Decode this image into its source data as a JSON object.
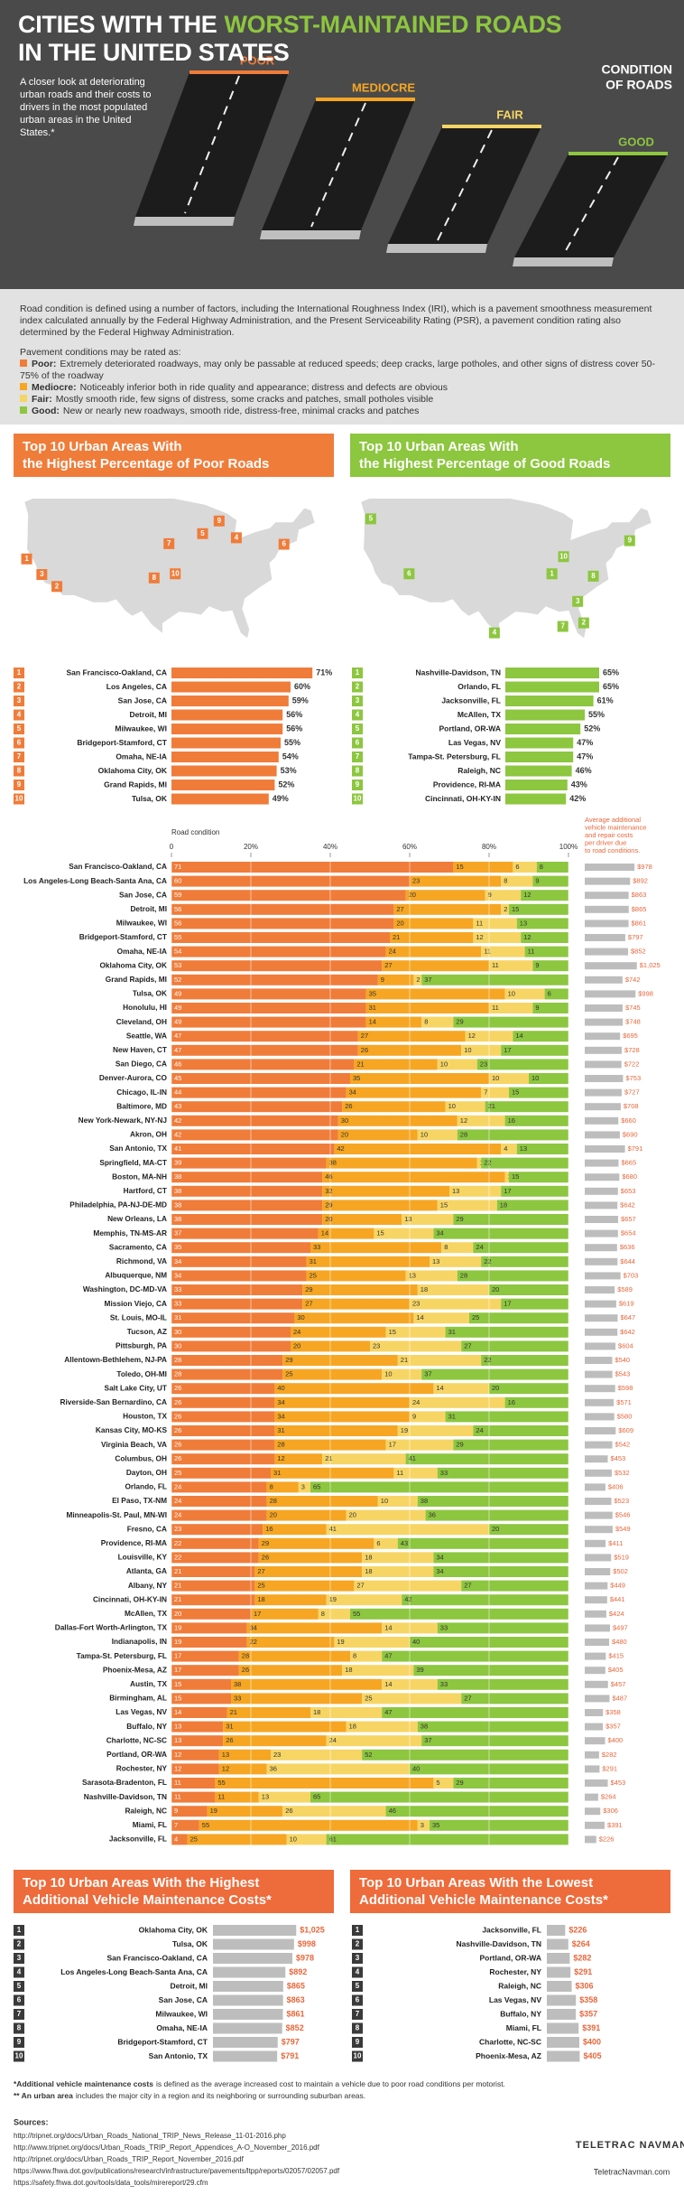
{
  "header": {
    "title": [
      "CITIES WITH THE",
      "WORST-MAINTAINED ROADS",
      "IN THE UNITED STATES"
    ],
    "intro": "A closer look at deteriorating urban roads and their costs to drivers in the most populated urban areas in the United States.*",
    "road_labels": [
      "POOR",
      "MEDIOCRE",
      "FAIR",
      "GOOD"
    ],
    "condition_label": [
      "CONDITION",
      "OF ROADS"
    ]
  },
  "definitions": {
    "intro": "Road condition is defined using a number of factors, including the International Roughness Index (IRI), which is a pavement smoothness measurement index calculated annually by the Federal Highway Administration, and the Present Serviceability Rating (PSR), a pavement condition rating also determined by the Federal Highway Administration.",
    "prompt": "Pavement conditions may be rated as:",
    "items": [
      {
        "term": "Poor:",
        "text": "Extremely deteriorated roadways, may only be passable at reduced speeds; deep cracks, large potholes, and other signs of distress cover 50-75% of the roadway"
      },
      {
        "term": "Mediocre:",
        "text": "Noticeably inferior both in ride quality and appearance; distress and defects are obvious"
      },
      {
        "term": "Fair:",
        "text": "Mostly smooth ride, few signs of distress, some cracks and patches, small potholes visible"
      },
      {
        "term": "Good:",
        "text": "New or nearly new roadways, smooth ride, distress-free, minimal cracks and patches"
      }
    ]
  },
  "ranks": [
    1,
    2,
    3,
    4,
    5,
    6,
    7,
    8,
    9,
    10
  ],
  "chart_data": [
    {
      "type": "bar",
      "title": [
        "Top 10 Urban Areas With",
        "the Highest Percentage of Poor Roads"
      ],
      "color": "#f07c3a",
      "categories": [
        "San Francisco-Oakland, CA",
        "Los Angeles, CA",
        "San Jose, CA",
        "Detroit, MI",
        "Milwaukee, WI",
        "Bridgeport-Stamford, CT",
        "Omaha, NE-IA",
        "Oklahoma City, OK",
        "Grand Rapids, MI",
        "Tulsa, OK"
      ],
      "values": [
        71,
        60,
        59,
        56,
        56,
        55,
        54,
        53,
        52,
        49
      ],
      "value_labels": [
        "71%",
        "60%",
        "59%",
        "56%",
        "56%",
        "55%",
        "54%",
        "53%",
        "52%",
        "49%"
      ]
    },
    {
      "type": "bar",
      "title": [
        "Top 10 Urban Areas With",
        "the Highest Percentage of Good Roads"
      ],
      "color": "#8dc63f",
      "categories": [
        "Nashville-Davidson, TN",
        "Orlando, FL",
        "Jacksonville, FL",
        "McAllen, TX",
        "Portland, OR-WA",
        "Las Vegas, NV",
        "Tampa-St. Petersburg, FL",
        "Raleigh, NC",
        "Providence, RI-MA",
        "Cincinnati, OH-KY-IN"
      ],
      "values": [
        65,
        65,
        61,
        55,
        52,
        47,
        47,
        46,
        43,
        42
      ],
      "value_labels": [
        "65%",
        "65%",
        "61%",
        "55%",
        "52%",
        "47%",
        "47%",
        "46%",
        "43%",
        "42%"
      ]
    },
    {
      "type": "stacked-bar",
      "title": "Road condition",
      "xlim": [
        0,
        100
      ],
      "xticks": [
        0,
        {
          "value": 20,
          "label": "20%"
        },
        {
          "value": 40,
          "label": "40%"
        },
        {
          "value": 60,
          "label": "60%"
        },
        {
          "value": 80,
          "label": "80%"
        },
        {
          "value": 100,
          "label": "100%"
        }
      ],
      "categories": [
        "San Francisco-Oakland, CA",
        "Los Angeles-Long Beach-Santa Ana, CA",
        "San Jose, CA",
        "Detroit, MI",
        "Milwaukee, WI",
        "Bridgeport-Stamford, CT",
        "Omaha, NE-IA",
        "Oklahoma City, OK",
        "Grand Rapids, MI",
        "Tulsa, OK",
        "Honolulu, HI",
        "Cleveland, OH",
        "Seattle, WA",
        "New Haven, CT",
        "San Diego, CA",
        "Denver-Aurora, CO",
        "Chicago, IL-IN",
        "Baltimore, MD",
        "New York-Newark, NY-NJ",
        "Akron, OH",
        "San Antonio, TX",
        "Springfield, MA-CT",
        "Boston, MA-NH",
        "Hartford, CT",
        "Philadelphia, PA-NJ-DE-MD",
        "New Orleans, LA",
        "Memphis, TN-MS-AR",
        "Sacramento, CA",
        "Richmond, VA",
        "Albuquerque, NM",
        "Washington, DC-MD-VA",
        "Mission Viejo, CA",
        "St. Louis, MO-IL",
        "Tucson, AZ",
        "Pittsburgh, PA",
        "Allentown-Bethlehem, NJ-PA",
        "Toledo, OH-MI",
        "Salt Lake City, UT",
        "Riverside-San Bernardino, CA",
        "Houston, TX",
        "Kansas City, MO-KS",
        "Virginia Beach, VA",
        "Columbus, OH",
        "Dayton, OH",
        "Orlando, FL",
        "El Paso, TX-NM",
        "Minneapolis-St. Paul, MN-WI",
        "Fresno, CA",
        "Providence, RI-MA",
        "Louisville, KY",
        "Atlanta, GA",
        "Albany, NY",
        "Cincinnati, OH-KY-IN",
        "McAllen, TX",
        "Dallas-Fort Worth-Arlington, TX",
        "Indianapolis, IN",
        "Tampa-St. Petersburg, FL",
        "Phoenix-Mesa, AZ",
        "Austin, TX",
        "Birmingham, AL",
        "Las Vegas, NV",
        "Buffalo, NY",
        "Charlotte, NC-SC",
        "Portland, OR-WA",
        "Rochester, NY",
        "Sarasota-Bradenton, FL",
        "Nashville-Davidson, TN",
        "Raleigh, NC",
        "Miami, FL",
        "Jacksonville, FL"
      ],
      "series": [
        {
          "color": "#f07c3a",
          "values": [
            71,
            60,
            59,
            56,
            56,
            55,
            54,
            53,
            52,
            49,
            49,
            49,
            47,
            47,
            46,
            45,
            44,
            43,
            42,
            42,
            41,
            39,
            38,
            38,
            38,
            38,
            37,
            35,
            34,
            34,
            33,
            33,
            31,
            30,
            30,
            28,
            28,
            26,
            26,
            26,
            26,
            26,
            26,
            25,
            24,
            24,
            24,
            23,
            22,
            22,
            21,
            21,
            21,
            20,
            19,
            19,
            17,
            17,
            15,
            15,
            14,
            13,
            13,
            12,
            12,
            11,
            11,
            9,
            7,
            4
          ]
        },
        {
          "color": "#f6a623",
          "values": [
            15,
            23,
            20,
            27,
            20,
            21,
            24,
            27,
            9,
            35,
            31,
            14,
            27,
            26,
            21,
            35,
            34,
            26,
            30,
            20,
            42,
            38,
            46,
            32,
            29,
            20,
            14,
            33,
            31,
            25,
            29,
            27,
            30,
            24,
            20,
            29,
            25,
            40,
            34,
            34,
            31,
            28,
            12,
            31,
            8,
            28,
            20,
            16,
            29,
            26,
            27,
            25,
            18,
            17,
            34,
            22,
            28,
            26,
            38,
            33,
            21,
            31,
            26,
            13,
            12,
            55,
            11,
            19,
            55,
            25
          ]
        },
        {
          "color": "#f7d564",
          "values": [
            6,
            8,
            9,
            2,
            11,
            12,
            11,
            11,
            2,
            10,
            11,
            8,
            12,
            10,
            10,
            10,
            7,
            10,
            12,
            10,
            4,
            1,
            1,
            13,
            15,
            13,
            15,
            8,
            13,
            13,
            18,
            23,
            14,
            15,
            23,
            21,
            10,
            14,
            24,
            9,
            19,
            17,
            21,
            11,
            3,
            10,
            20,
            41,
            6,
            18,
            18,
            27,
            19,
            8,
            14,
            19,
            8,
            18,
            14,
            25,
            18,
            18,
            24,
            23,
            36,
            5,
            13,
            26,
            3,
            10
          ]
        },
        {
          "color": "#8dc63f",
          "values": [
            8,
            9,
            12,
            15,
            13,
            12,
            11,
            9,
            37,
            6,
            9,
            29,
            14,
            17,
            23,
            10,
            15,
            21,
            16,
            28,
            13,
            22,
            15,
            17,
            18,
            29,
            34,
            24,
            22,
            28,
            20,
            17,
            25,
            31,
            27,
            22,
            37,
            20,
            16,
            31,
            24,
            29,
            41,
            33,
            65,
            38,
            36,
            20,
            43,
            34,
            34,
            27,
            42,
            55,
            33,
            40,
            47,
            39,
            33,
            27,
            47,
            38,
            37,
            52,
            40,
            29,
            65,
            46,
            35,
            61
          ]
        }
      ],
      "cost": {
        "title": [
          "Average additional",
          "vehicle maintenance",
          "and repair costs",
          "per driver due",
          "to road conditions."
        ],
        "color": "#bdbdbd",
        "values": [
          978,
          892,
          863,
          865,
          861,
          797,
          852,
          1025,
          742,
          998,
          745,
          748,
          695,
          728,
          722,
          753,
          727,
          708,
          660,
          690,
          791,
          665,
          680,
          653,
          642,
          657,
          654,
          636,
          644,
          703,
          589,
          619,
          647,
          642,
          604,
          540,
          543,
          598,
          571,
          580,
          609,
          542,
          453,
          532,
          406,
          523,
          546,
          549,
          411,
          519,
          502,
          449,
          441,
          424,
          497,
          480,
          415,
          405,
          457,
          487,
          358,
          357,
          400,
          282,
          291,
          453,
          264,
          306,
          391,
          226
        ],
        "value_labels": [
          "$978",
          "$892",
          "$863",
          "$865",
          "$861",
          "$797",
          "$852",
          "$1,025",
          "$742",
          "$998",
          "$745",
          "$748",
          "$695",
          "$728",
          "$722",
          "$753",
          "$727",
          "$708",
          "$660",
          "$690",
          "$791",
          "$665",
          "$680",
          "$653",
          "$642",
          "$657",
          "$654",
          "$636",
          "$644",
          "$703",
          "$589",
          "$619",
          "$647",
          "$642",
          "$604",
          "$540",
          "$543",
          "$598",
          "$571",
          "$580",
          "$609",
          "$542",
          "$453",
          "$532",
          "$406",
          "$523",
          "$546",
          "$549",
          "$411",
          "$519",
          "$502",
          "$449",
          "$441",
          "$424",
          "$497",
          "$480",
          "$415",
          "$405",
          "$457",
          "$487",
          "$358",
          "$357",
          "$400",
          "$282",
          "$291",
          "$453",
          "$264",
          "$306",
          "$391",
          "$226"
        ]
      }
    },
    {
      "type": "bar",
      "title": [
        "Top 10 Urban Areas With the Highest",
        "Additional Vehicle Maintenance Costs*"
      ],
      "color": "#bdbdbd",
      "categories": [
        "Oklahoma City, OK",
        "Tulsa, OK",
        "San Francisco-Oakland, CA",
        "Los Angeles-Long Beach-Santa Ana, CA",
        "Detroit, MI",
        "San Jose, CA",
        "Milwaukee, WI",
        "Omaha, NE-IA",
        "Bridgeport-Stamford, CT",
        "San Antonio, TX"
      ],
      "values": [
        1025,
        998,
        978,
        892,
        865,
        863,
        861,
        852,
        797,
        791
      ],
      "value_labels": [
        "$1,025",
        "$998",
        "$978",
        "$892",
        "$865",
        "$863",
        "$861",
        "$852",
        "$797",
        "$791"
      ]
    },
    {
      "type": "bar",
      "title": [
        "Top 10 Urban Areas With the Lowest",
        "Additional Vehicle Maintenance Costs*"
      ],
      "color": "#bdbdbd",
      "categories": [
        "Jacksonville, FL",
        "Nashville-Davidson, TN",
        "Portland, OR-WA",
        "Rochester, NY",
        "Raleigh, NC",
        "Las Vegas, NV",
        "Buffalo, NY",
        "Miami, FL",
        "Charlotte, NC-SC",
        "Phoenix-Mesa, AZ"
      ],
      "values": [
        226,
        264,
        282,
        291,
        306,
        358,
        357,
        391,
        400,
        405
      ],
      "value_labels": [
        "$226",
        "$264",
        "$282",
        "$291",
        "$306",
        "$358",
        "$357",
        "$391",
        "$400",
        "$405"
      ]
    }
  ],
  "footnotes": [
    {
      "bold": "*Additional vehicle maintenance costs",
      "text": "is defined as the average increased cost to maintain a vehicle due to poor road conditions per motorist."
    },
    {
      "bold": "** An urban area",
      "text": "includes the major city in a region and its neighboring or surrounding suburban areas."
    }
  ],
  "sources": {
    "title": "Sources:",
    "urls": [
      "http://tripnet.org/docs/Urban_Roads_National_TRIP_News_Release_11-01-2016.php",
      "http://www.tripnet.org/docs/Urban_Roads_TRIP_Report_Appendices_A-O_November_2016.pdf",
      "http://tripnet.org/docs/Urban_Roads_TRIP_Report_November_2016.pdf",
      "https://www.fhwa.dot.gov/publications/research/infrastructure/pavements/ltpp/reports/02057/02057.pdf",
      "https://safety.fhwa.dot.gov/tools/data_tools/mirereport/29.cfm"
    ]
  },
  "logo": {
    "name": "TELETRAC NAVMAN",
    "url": "TeletracNavman.com"
  }
}
